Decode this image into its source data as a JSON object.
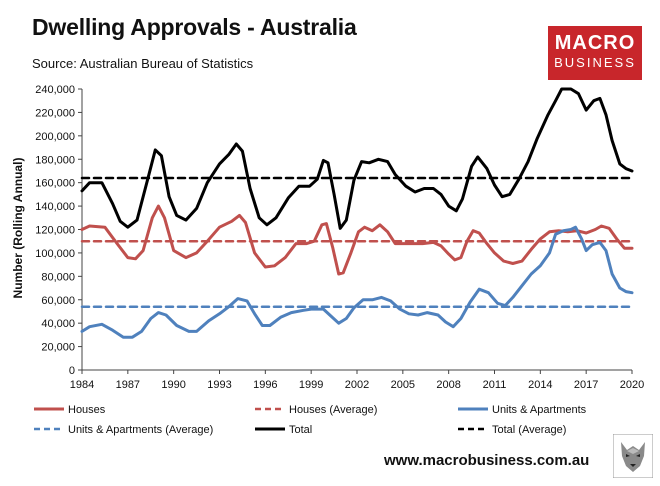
{
  "header": {
    "title": "Dwelling Approvals - Australia",
    "source": "Source: Australian Bureau of Statistics"
  },
  "logo": {
    "line1": "MACRO",
    "line2": "BUSINESS"
  },
  "footer": {
    "url": "www.macrobusiness.com.au"
  },
  "colors": {
    "houses": "#c0504d",
    "units": "#4f81bd",
    "total": "#000000",
    "brand": "#c8262b"
  },
  "chart_data": {
    "type": "line",
    "title": "Dwelling Approvals - Australia",
    "xlabel": "",
    "ylabel": "Number (Rolling Annual)",
    "xlim": [
      1984,
      2020
    ],
    "ylim": [
      0,
      240000
    ],
    "x_ticks": [
      1984,
      1987,
      1990,
      1993,
      1996,
      1999,
      2002,
      2005,
      2008,
      2011,
      2014,
      2017,
      2020
    ],
    "y_ticks": [
      0,
      20000,
      40000,
      60000,
      80000,
      100000,
      120000,
      140000,
      160000,
      180000,
      200000,
      220000,
      240000
    ],
    "y_tick_labels": [
      "0",
      "20,000",
      "40,000",
      "60,000",
      "80,000",
      "100,000",
      "120,000",
      "140,000",
      "160,000",
      "180,000",
      "200,000",
      "220,000",
      "240,000"
    ],
    "grid": false,
    "legend_position": "bottom",
    "series": [
      {
        "name": "Houses",
        "style": "solid",
        "points": [
          [
            1984.0,
            120000
          ],
          [
            1984.5,
            123000
          ],
          [
            1985.5,
            122000
          ],
          [
            1986.3,
            108000
          ],
          [
            1987.0,
            96000
          ],
          [
            1987.5,
            95000
          ],
          [
            1988.0,
            102000
          ],
          [
            1988.6,
            130000
          ],
          [
            1989.0,
            140000
          ],
          [
            1989.4,
            130000
          ],
          [
            1990.0,
            102000
          ],
          [
            1990.8,
            96000
          ],
          [
            1991.5,
            100000
          ],
          [
            1992.2,
            110000
          ],
          [
            1993.0,
            122000
          ],
          [
            1993.8,
            127000
          ],
          [
            1994.3,
            132000
          ],
          [
            1994.7,
            126000
          ],
          [
            1995.3,
            100000
          ],
          [
            1996.0,
            88000
          ],
          [
            1996.6,
            89000
          ],
          [
            1997.3,
            96000
          ],
          [
            1998.0,
            108000
          ],
          [
            1998.7,
            108000
          ],
          [
            1999.2,
            110000
          ],
          [
            1999.7,
            124000
          ],
          [
            2000.0,
            125000
          ],
          [
            2000.4,
            105000
          ],
          [
            2000.8,
            82000
          ],
          [
            2001.1,
            83000
          ],
          [
            2001.6,
            100000
          ],
          [
            2002.1,
            118000
          ],
          [
            2002.5,
            122000
          ],
          [
            2003.0,
            119000
          ],
          [
            2003.5,
            124000
          ],
          [
            2004.0,
            118000
          ],
          [
            2004.5,
            108000
          ],
          [
            2005.0,
            108000
          ],
          [
            2005.6,
            108000
          ],
          [
            2006.3,
            108000
          ],
          [
            2007.0,
            109000
          ],
          [
            2007.5,
            106000
          ],
          [
            2008.0,
            99000
          ],
          [
            2008.4,
            94000
          ],
          [
            2008.8,
            96000
          ],
          [
            2009.2,
            110000
          ],
          [
            2009.6,
            119000
          ],
          [
            2010.0,
            117000
          ],
          [
            2010.5,
            108000
          ],
          [
            2011.0,
            100000
          ],
          [
            2011.6,
            93000
          ],
          [
            2012.2,
            91000
          ],
          [
            2012.8,
            93000
          ],
          [
            2013.4,
            103000
          ],
          [
            2014.0,
            112000
          ],
          [
            2014.6,
            118000
          ],
          [
            2015.2,
            119000
          ],
          [
            2015.8,
            118000
          ],
          [
            2016.4,
            119000
          ],
          [
            2017.0,
            117000
          ],
          [
            2017.6,
            120000
          ],
          [
            2018.0,
            123000
          ],
          [
            2018.5,
            121000
          ],
          [
            2019.0,
            112000
          ],
          [
            2019.5,
            104000
          ],
          [
            2020.0,
            104000
          ]
        ]
      },
      {
        "name": "Houses (Average)",
        "style": "dashed",
        "points": [
          [
            1984,
            110000
          ],
          [
            2020,
            110000
          ]
        ]
      },
      {
        "name": "Units & Apartments",
        "style": "solid",
        "points": [
          [
            1984.0,
            33000
          ],
          [
            1984.5,
            37000
          ],
          [
            1985.3,
            39000
          ],
          [
            1986.0,
            34000
          ],
          [
            1986.7,
            28000
          ],
          [
            1987.3,
            28000
          ],
          [
            1987.9,
            33000
          ],
          [
            1988.5,
            44000
          ],
          [
            1989.0,
            49000
          ],
          [
            1989.5,
            47000
          ],
          [
            1990.2,
            38000
          ],
          [
            1991.0,
            33000
          ],
          [
            1991.5,
            33000
          ],
          [
            1992.3,
            42000
          ],
          [
            1993.0,
            48000
          ],
          [
            1993.6,
            54000
          ],
          [
            1994.2,
            61000
          ],
          [
            1994.8,
            59000
          ],
          [
            1995.3,
            48000
          ],
          [
            1995.8,
            38000
          ],
          [
            1996.3,
            38000
          ],
          [
            1997.0,
            45000
          ],
          [
            1997.7,
            49000
          ],
          [
            1998.5,
            51000
          ],
          [
            1999.0,
            52000
          ],
          [
            1999.8,
            52000
          ],
          [
            2000.3,
            46000
          ],
          [
            2000.8,
            40000
          ],
          [
            2001.3,
            44000
          ],
          [
            2001.8,
            53000
          ],
          [
            2002.4,
            60000
          ],
          [
            2003.0,
            60000
          ],
          [
            2003.6,
            62000
          ],
          [
            2004.2,
            59000
          ],
          [
            2004.8,
            52000
          ],
          [
            2005.4,
            48000
          ],
          [
            2006.0,
            47000
          ],
          [
            2006.6,
            49000
          ],
          [
            2007.3,
            47000
          ],
          [
            2007.8,
            41000
          ],
          [
            2008.3,
            37000
          ],
          [
            2008.8,
            44000
          ],
          [
            2009.4,
            58000
          ],
          [
            2010.0,
            69000
          ],
          [
            2010.6,
            66000
          ],
          [
            2011.2,
            57000
          ],
          [
            2011.7,
            55000
          ],
          [
            2012.2,
            62000
          ],
          [
            2012.8,
            72000
          ],
          [
            2013.4,
            82000
          ],
          [
            2014.0,
            89000
          ],
          [
            2014.6,
            100000
          ],
          [
            2015.0,
            116000
          ],
          [
            2015.5,
            119000
          ],
          [
            2016.0,
            120000
          ],
          [
            2016.3,
            122000
          ],
          [
            2016.7,
            112000
          ],
          [
            2017.0,
            102000
          ],
          [
            2017.4,
            107000
          ],
          [
            2017.9,
            109000
          ],
          [
            2018.3,
            102000
          ],
          [
            2018.7,
            82000
          ],
          [
            2019.2,
            70000
          ],
          [
            2019.6,
            67000
          ],
          [
            2020.0,
            66000
          ]
        ]
      },
      {
        "name": "Units & Apartments (Average)",
        "style": "dashed",
        "points": [
          [
            1984,
            54000
          ],
          [
            2020,
            54000
          ]
        ]
      },
      {
        "name": "Total",
        "style": "solid",
        "points": [
          [
            1984.0,
            153000
          ],
          [
            1984.5,
            160000
          ],
          [
            1985.3,
            160000
          ],
          [
            1986.0,
            142000
          ],
          [
            1986.5,
            127000
          ],
          [
            1987.0,
            122000
          ],
          [
            1987.6,
            128000
          ],
          [
            1988.3,
            163000
          ],
          [
            1988.8,
            188000
          ],
          [
            1989.2,
            183000
          ],
          [
            1989.7,
            148000
          ],
          [
            1990.2,
            132000
          ],
          [
            1990.8,
            128000
          ],
          [
            1991.5,
            138000
          ],
          [
            1992.2,
            160000
          ],
          [
            1993.0,
            176000
          ],
          [
            1993.6,
            184000
          ],
          [
            1994.1,
            193000
          ],
          [
            1994.5,
            187000
          ],
          [
            1995.0,
            155000
          ],
          [
            1995.6,
            130000
          ],
          [
            1996.1,
            124000
          ],
          [
            1996.7,
            130000
          ],
          [
            1997.5,
            147000
          ],
          [
            1998.2,
            157000
          ],
          [
            1998.9,
            157000
          ],
          [
            1999.4,
            163000
          ],
          [
            1999.8,
            179000
          ],
          [
            2000.1,
            177000
          ],
          [
            2000.5,
            150000
          ],
          [
            2000.9,
            121000
          ],
          [
            2001.3,
            128000
          ],
          [
            2001.8,
            162000
          ],
          [
            2002.3,
            178000
          ],
          [
            2002.8,
            177000
          ],
          [
            2003.4,
            180000
          ],
          [
            2004.0,
            178000
          ],
          [
            2004.5,
            167000
          ],
          [
            2005.2,
            157000
          ],
          [
            2005.8,
            152000
          ],
          [
            2006.4,
            155000
          ],
          [
            2007.0,
            155000
          ],
          [
            2007.5,
            150000
          ],
          [
            2008.0,
            140000
          ],
          [
            2008.5,
            136000
          ],
          [
            2008.9,
            146000
          ],
          [
            2009.5,
            174000
          ],
          [
            2009.9,
            182000
          ],
          [
            2010.5,
            172000
          ],
          [
            2011.0,
            158000
          ],
          [
            2011.5,
            148000
          ],
          [
            2012.0,
            150000
          ],
          [
            2012.6,
            163000
          ],
          [
            2013.2,
            178000
          ],
          [
            2013.8,
            198000
          ],
          [
            2014.5,
            218000
          ],
          [
            2015.0,
            230000
          ],
          [
            2015.4,
            240000
          ],
          [
            2016.0,
            240000
          ],
          [
            2016.5,
            236000
          ],
          [
            2017.0,
            222000
          ],
          [
            2017.5,
            230000
          ],
          [
            2017.9,
            232000
          ],
          [
            2018.3,
            218000
          ],
          [
            2018.7,
            196000
          ],
          [
            2019.2,
            176000
          ],
          [
            2019.6,
            172000
          ],
          [
            2020.0,
            170000
          ]
        ]
      },
      {
        "name": "Total (Average)",
        "style": "dashed",
        "points": [
          [
            1984,
            164000
          ],
          [
            2020,
            164000
          ]
        ]
      }
    ]
  }
}
